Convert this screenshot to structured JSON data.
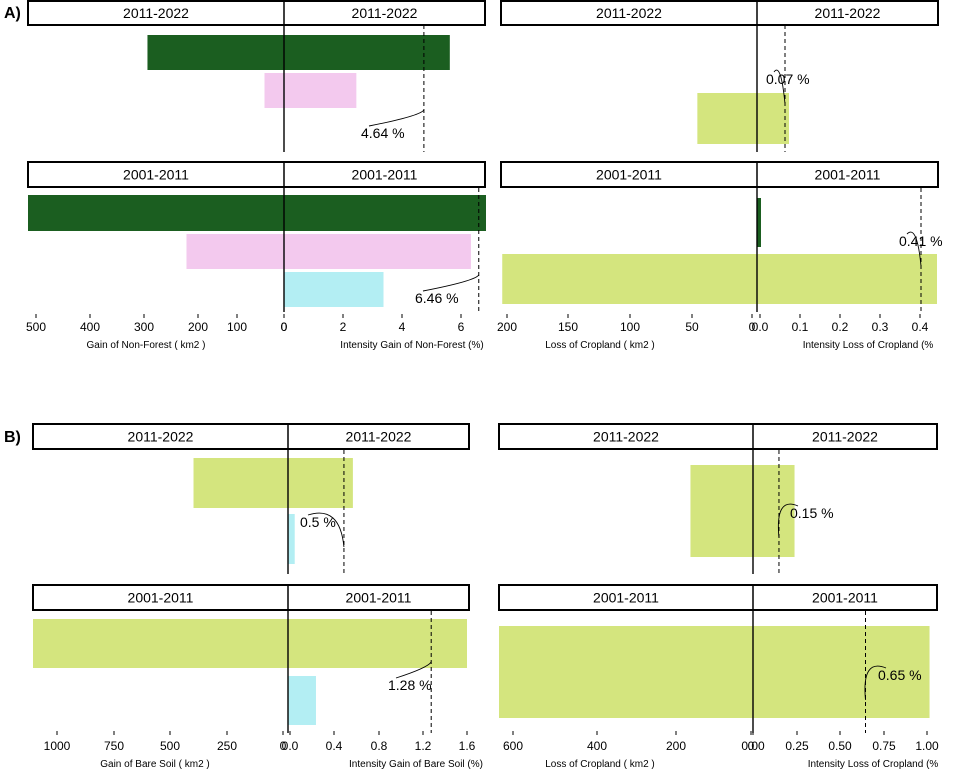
{
  "chart_data": {
    "type": "bar",
    "panels": [
      {
        "label": "A)",
        "charts": [
          {
            "id": "A-left",
            "left_title": "Gain of Non-Forest ( km2 )",
            "right_title": "Intensity Gain of Non-Forest (%)",
            "left_ticks": [
              "500",
              "400",
              "300",
              "200",
              "100",
              "0"
            ],
            "right_ticks": [
              "0",
              "2",
              "4",
              "6"
            ],
            "periods": [
              {
                "header_left": "2011-2022",
                "header_right": "2011-2022",
                "uniform_value": 4.64,
                "annotation": "4.64 %",
                "bars": [
                  {
                    "color": "#1b5e20",
                    "area_km2": 280,
                    "intensity_pct": 5.5
                  },
                  {
                    "color": "#f3c9ee",
                    "area_km2": 40,
                    "intensity_pct": 2.4
                  }
                ]
              },
              {
                "header_left": "2001-2011",
                "header_right": "2001-2011",
                "uniform_value": 6.46,
                "annotation": "6.46 %",
                "bars": [
                  {
                    "color": "#1b5e20",
                    "area_km2": 525,
                    "intensity_pct": 6.7
                  },
                  {
                    "color": "#f3c9ee",
                    "area_km2": 200,
                    "intensity_pct": 6.2
                  },
                  {
                    "color": "#b3eef3",
                    "area_km2": 0,
                    "intensity_pct": 3.3
                  }
                ]
              }
            ]
          },
          {
            "id": "A-right",
            "left_title": "Loss of Cropland ( km2 )",
            "right_title": "Intensity Loss of Cropland (%",
            "left_ticks": [
              "200",
              "150",
              "100",
              "50",
              "0"
            ],
            "right_ticks": [
              "0.0",
              "0.1",
              "0.2",
              "0.3",
              "0.4"
            ],
            "periods": [
              {
                "header_left": "2011-2022",
                "header_right": "2011-2022",
                "uniform_value": 0.07,
                "annotation": "0.07 %",
                "bars": [
                  {
                    "color": "#d4e57e",
                    "area_km2": 48,
                    "intensity_pct": 0.08
                  }
                ]
              },
              {
                "header_left": "2001-2011",
                "header_right": "2001-2011",
                "uniform_value": 0.41,
                "annotation": "0.41 %",
                "bars": [
                  {
                    "color": "#1b5e20",
                    "area_km2": 0,
                    "intensity_pct": 0.01
                  },
                  {
                    "color": "#d4e57e",
                    "area_km2": 205,
                    "intensity_pct": 0.45
                  }
                ]
              }
            ]
          }
        ]
      },
      {
        "label": "B)",
        "charts": [
          {
            "id": "B-left",
            "left_title": "Gain of Bare Soil ( km2 )",
            "right_title": "Intensity Gain of Bare Soil (%)",
            "left_ticks": [
              "1000",
              "750",
              "500",
              "250",
              "0"
            ],
            "right_ticks": [
              "0.0",
              "0.4",
              "0.8",
              "1.2",
              "1.6"
            ],
            "periods": [
              {
                "header_left": "2011-2022",
                "header_right": "2011-2022",
                "uniform_value": 0.5,
                "annotation": "0.5 %",
                "bars": [
                  {
                    "color": "#d4e57e",
                    "area_km2": 415,
                    "intensity_pct": 0.58
                  },
                  {
                    "color": "#b3eef3",
                    "area_km2": 0,
                    "intensity_pct": 0.06
                  }
                ]
              },
              {
                "header_left": "2001-2011",
                "header_right": "2001-2011",
                "uniform_value": 1.28,
                "annotation": "1.28 %",
                "bars": [
                  {
                    "color": "#d4e57e",
                    "area_km2": 1120,
                    "intensity_pct": 1.6
                  },
                  {
                    "color": "#b3eef3",
                    "area_km2": 0,
                    "intensity_pct": 0.25
                  }
                ]
              }
            ]
          },
          {
            "id": "B-right",
            "left_title": "Loss of Cropland ( km2 )",
            "right_title": "Intensity Loss of Cropland (%",
            "left_ticks": [
              "600",
              "400",
              "200",
              "0"
            ],
            "right_ticks": [
              "0.00",
              "0.25",
              "0.50",
              "0.75",
              "1.00"
            ],
            "periods": [
              {
                "header_left": "2011-2022",
                "header_right": "2011-2022",
                "uniform_value": 0.15,
                "annotation": "0.15 %",
                "bars": [
                  {
                    "color": "#d4e57e",
                    "area_km2": 165,
                    "intensity_pct": 0.24
                  }
                ]
              },
              {
                "header_left": "2001-2011",
                "header_right": "2001-2011",
                "uniform_value": 0.65,
                "annotation": "0.65 %",
                "bars": [
                  {
                    "color": "#d4e57e",
                    "area_km2": 670,
                    "intensity_pct": 1.02
                  }
                ]
              }
            ]
          }
        ]
      }
    ]
  }
}
